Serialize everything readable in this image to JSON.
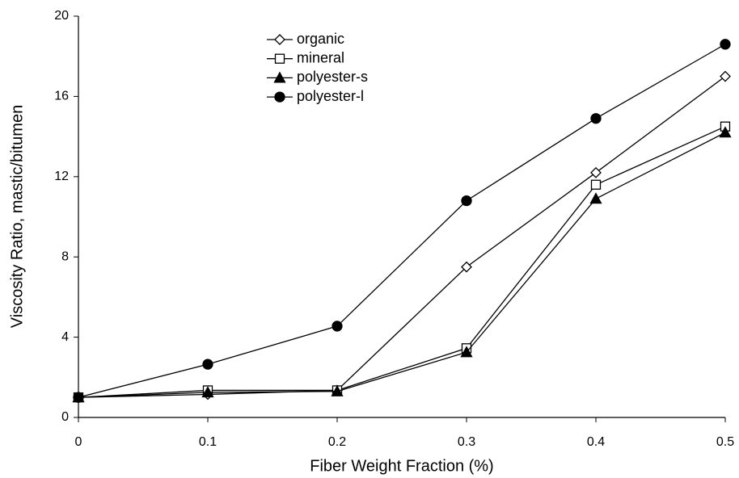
{
  "chart_data": {
    "type": "line",
    "xlabel": "Fiber Weight Fraction (%)",
    "ylabel": "Viscosity Ratio, mastic/bitumen",
    "x": [
      0,
      0.1,
      0.2,
      0.3,
      0.4,
      0.5
    ],
    "series": [
      {
        "name": "organic",
        "color": "#000000",
        "marker": "diamond",
        "filled": false,
        "values": [
          1,
          1.15,
          1.35,
          7.5,
          12.2,
          17
        ]
      },
      {
        "name": "mineral",
        "color": "#000000",
        "marker": "square",
        "filled": false,
        "values": [
          1,
          1.35,
          1.35,
          3.45,
          11.6,
          14.5
        ]
      },
      {
        "name": "polyester-s",
        "color": "#000000",
        "marker": "triangle",
        "filled": true,
        "values": [
          1,
          1.25,
          1.3,
          3.25,
          10.9,
          14.2
        ]
      },
      {
        "name": "polyester-l",
        "color": "#000000",
        "marker": "circle",
        "filled": true,
        "values": [
          1,
          2.65,
          4.55,
          10.8,
          14.9,
          18.6
        ]
      }
    ],
    "xlim": [
      0,
      0.5
    ],
    "xticks": [
      0,
      0.1,
      0.2,
      0.3,
      0.4,
      0.5
    ],
    "ylim": [
      0,
      20
    ],
    "yticks": [
      0,
      4,
      8,
      12,
      16,
      20
    ],
    "grid": false,
    "legend": "upper left"
  }
}
